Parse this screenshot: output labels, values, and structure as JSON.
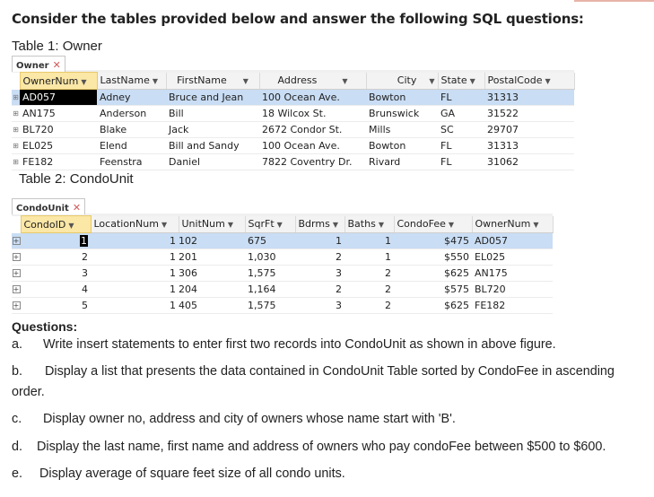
{
  "heading": "Consider the tables provided below and answer the following SQL questions:",
  "owner_caption": "Table 1: Owner",
  "owner_tab": "Owner",
  "owner": {
    "headers": [
      "OwnerNum",
      "LastName",
      "FirstName",
      "Address",
      "City",
      "State",
      "PostalCode"
    ],
    "rows": [
      [
        "AD057",
        "Adney",
        "Bruce and Jean",
        "100 Ocean Ave.",
        "Bowton",
        "FL",
        "31313"
      ],
      [
        "AN175",
        "Anderson",
        "Bill",
        "18 Wilcox St.",
        "Brunswick",
        "GA",
        "31522"
      ],
      [
        "BL720",
        "Blake",
        "Jack",
        "2672 Condor St.",
        "Mills",
        "SC",
        "29707"
      ],
      [
        "EL025",
        "Elend",
        "Bill and Sandy",
        "100 Ocean Ave.",
        "Bowton",
        "FL",
        "31313"
      ],
      [
        "FE182",
        "Feenstra",
        "Daniel",
        "7822 Coventry Dr.",
        "Rivard",
        "FL",
        "31062"
      ]
    ]
  },
  "condo_caption": "Table 2: CondoUnit",
  "condo_tab": "CondoUnit",
  "condo": {
    "headers": [
      "CondoID",
      "LocationNum",
      "UnitNum",
      "SqrFt",
      "Bdrms",
      "Baths",
      "CondoFee",
      "OwnerNum"
    ],
    "rows": [
      [
        "1",
        "1",
        "102",
        "675",
        "1",
        "1",
        "$475",
        "AD057"
      ],
      [
        "2",
        "1",
        "201",
        "1,030",
        "2",
        "1",
        "$550",
        "EL025"
      ],
      [
        "3",
        "1",
        "306",
        "1,575",
        "3",
        "2",
        "$625",
        "AN175"
      ],
      [
        "4",
        "1",
        "204",
        "1,164",
        "2",
        "2",
        "$575",
        "BL720"
      ],
      [
        "5",
        "1",
        "405",
        "1,575",
        "3",
        "2",
        "$625",
        "FE182"
      ]
    ]
  },
  "questions_heading": "Questions:",
  "questions": [
    {
      "letter": "a.",
      "text": "Write insert statements to enter first two records into CondoUnit as shown in above figure."
    },
    {
      "letter": "b.",
      "text": "Display a list that presents the data contained in CondoUnit Table sorted by  CondoFee in ascending",
      "cont": "order."
    },
    {
      "letter": "c.",
      "text": "Display owner no, address and city of owners whose name start with 'B'."
    },
    {
      "letter": "d.",
      "text": "Display the last name, first name and address of owners who pay condoFee between $500 to $600."
    },
    {
      "letter": "e.",
      "text": "Display average of square feet size of all condo units."
    }
  ],
  "icons": {
    "close": "close-icon",
    "dropdown": "dropdown-arrow-icon",
    "expand": "expand-icon"
  },
  "colors": {
    "selected_row": "#c9ddf4",
    "key_header": "#fbe7a6",
    "tab_close": "#d05a5a"
  }
}
